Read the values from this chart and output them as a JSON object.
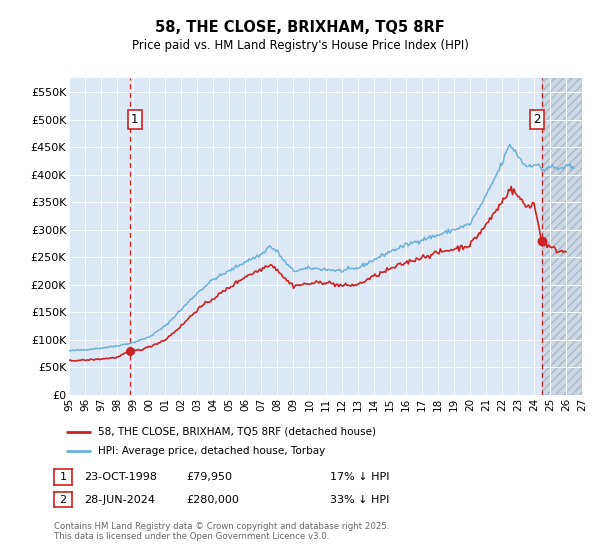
{
  "title": "58, THE CLOSE, BRIXHAM, TQ5 8RF",
  "subtitle": "Price paid vs. HM Land Registry's House Price Index (HPI)",
  "legend_line1": "58, THE CLOSE, BRIXHAM, TQ5 8RF (detached house)",
  "legend_line2": "HPI: Average price, detached house, Torbay",
  "footer": "Contains HM Land Registry data © Crown copyright and database right 2025.\nThis data is licensed under the Open Government Licence v3.0.",
  "annotation1_label": "1",
  "annotation1_date": "23-OCT-1998",
  "annotation1_price": "£79,950",
  "annotation1_hpi": "17% ↓ HPI",
  "annotation2_label": "2",
  "annotation2_date": "28-JUN-2024",
  "annotation2_price": "£280,000",
  "annotation2_hpi": "33% ↓ HPI",
  "sale1_x": 1998.81,
  "sale1_y": 79950,
  "sale2_x": 2024.49,
  "sale2_y": 280000,
  "vline1_x": 1998.81,
  "vline2_x": 2024.49,
  "xmin": 1995.0,
  "xmax": 2027.0,
  "ymin": 0,
  "ymax": 575000,
  "yticks": [
    0,
    50000,
    100000,
    150000,
    200000,
    250000,
    300000,
    350000,
    400000,
    450000,
    500000,
    550000
  ],
  "ytick_labels": [
    "£0",
    "£50K",
    "£100K",
    "£150K",
    "£200K",
    "£250K",
    "£300K",
    "£350K",
    "£400K",
    "£450K",
    "£500K",
    "£550K"
  ],
  "xticks": [
    1995,
    1996,
    1997,
    1998,
    1999,
    2000,
    2001,
    2002,
    2003,
    2004,
    2005,
    2006,
    2007,
    2008,
    2009,
    2010,
    2011,
    2012,
    2013,
    2014,
    2015,
    2016,
    2017,
    2018,
    2019,
    2020,
    2021,
    2022,
    2023,
    2024,
    2025,
    2026,
    2027
  ],
  "hpi_color": "#6ab0d8",
  "price_color": "#cc2222",
  "sale_dot_color": "#cc2222",
  "vline_color": "#cc2222",
  "bg_color": "#dce8f5",
  "future_bg_color": "#ccd8e8",
  "grid_color": "#ffffff",
  "hatch_future_start": 2024.5
}
